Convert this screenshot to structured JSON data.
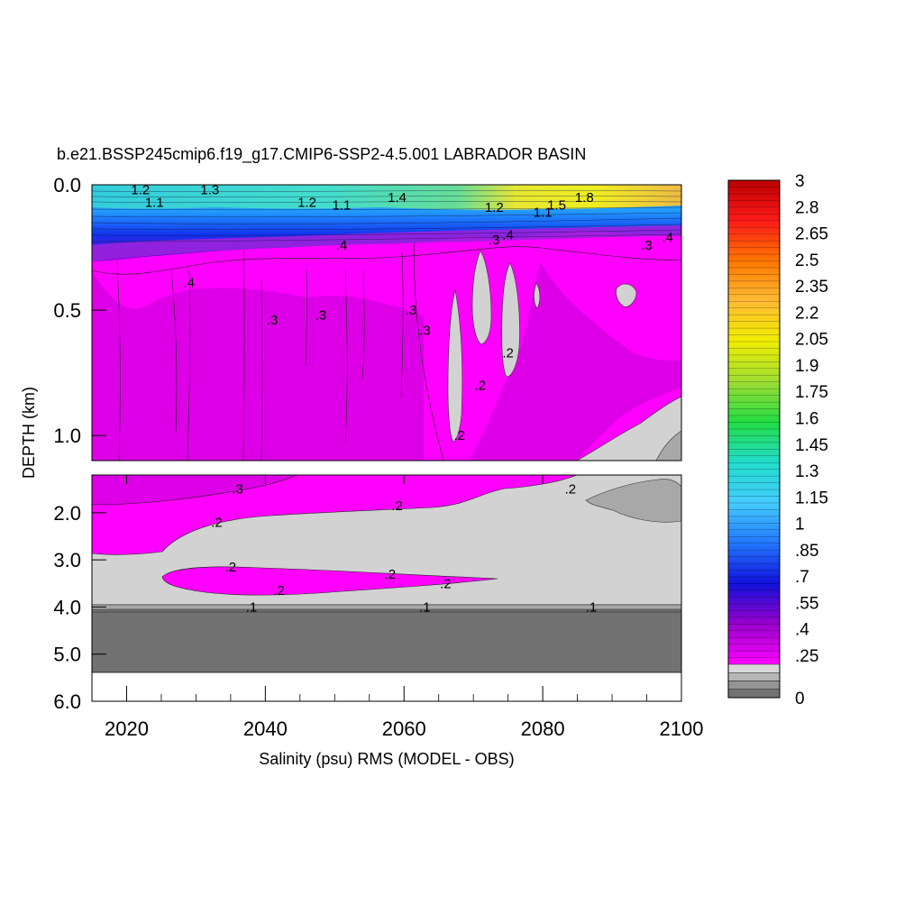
{
  "chart_data": {
    "type": "heatmap",
    "title": "b.e21.BSSP245cmip6.f19_g17.CMIP6-SSP2-4.5.001 LABRADOR BASIN",
    "xlabel": "Salinity (psu) RMS (MODEL - OBS)",
    "ylabel": "DEPTH (km)",
    "xlim": [
      2015,
      2100
    ],
    "x_ticks": [
      "2020",
      "2040",
      "2060",
      "2080",
      "2100"
    ],
    "upper_panel": {
      "ylim": [
        0.0,
        1.1
      ],
      "y_ticks": [
        "0.0",
        "0.5",
        "1.0"
      ],
      "contour_labels": [
        {
          "text": "1.2",
          "x": 2022,
          "y": 0.02
        },
        {
          "text": "1.1",
          "x": 2024,
          "y": 0.07
        },
        {
          "text": "1.3",
          "x": 2032,
          "y": 0.02
        },
        {
          "text": "1.2",
          "x": 2046,
          "y": 0.07
        },
        {
          "text": "1.1",
          "x": 2051,
          "y": 0.08
        },
        {
          "text": "1.4",
          "x": 2059,
          "y": 0.05
        },
        {
          "text": "1.2",
          "x": 2073,
          "y": 0.09
        },
        {
          "text": "1.1",
          "x": 2080,
          "y": 0.11
        },
        {
          "text": "1.5",
          "x": 2082,
          "y": 0.08
        },
        {
          "text": "1.8",
          "x": 2086,
          "y": 0.05
        },
        {
          "text": ".4",
          "x": 2051,
          "y": 0.24
        },
        {
          "text": ".4",
          "x": 2029,
          "y": 0.39
        },
        {
          "text": ".3",
          "x": 2073,
          "y": 0.22
        },
        {
          "text": ".4",
          "x": 2075,
          "y": 0.2
        },
        {
          "text": ".3",
          "x": 2095,
          "y": 0.24
        },
        {
          "text": ".4",
          "x": 2098,
          "y": 0.21
        },
        {
          "text": ".3",
          "x": 2041,
          "y": 0.54
        },
        {
          "text": ".3",
          "x": 2048,
          "y": 0.52
        },
        {
          "text": ".3",
          "x": 2061,
          "y": 0.5
        },
        {
          "text": ".3",
          "x": 2063,
          "y": 0.58
        },
        {
          "text": ".2",
          "x": 2075,
          "y": 0.67
        },
        {
          "text": ".2",
          "x": 2071,
          "y": 0.8
        },
        {
          "text": ".2",
          "x": 2068,
          "y": 1.0
        }
      ]
    },
    "lower_panel": {
      "ylim": [
        1.2,
        6.0
      ],
      "y_ticks": [
        "2.0",
        "3.0",
        "4.0",
        "5.0",
        "6.0"
      ],
      "contour_labels": [
        {
          "text": ".3",
          "x": 2036,
          "y": 1.5
        },
        {
          "text": ".2",
          "x": 2084,
          "y": 1.5
        },
        {
          "text": ".2",
          "x": 2033,
          "y": 2.2
        },
        {
          "text": ".2",
          "x": 2059,
          "y": 1.85
        },
        {
          "text": ".2",
          "x": 2035,
          "y": 3.15
        },
        {
          "text": ".2",
          "x": 2058,
          "y": 3.3
        },
        {
          "text": ".2",
          "x": 2066,
          "y": 3.5
        },
        {
          "text": ".2",
          "x": 2042,
          "y": 3.65
        },
        {
          "text": ".1",
          "x": 2038,
          "y": 4.0
        },
        {
          "text": ".1",
          "x": 2063,
          "y": 4.0
        },
        {
          "text": ".1",
          "x": 2087,
          "y": 4.0
        }
      ],
      "no_data_below_km": 5.3
    },
    "colorbar": {
      "labels": [
        "3",
        "2.8",
        "2.65",
        "2.5",
        "2.35",
        "2.2",
        "2.05",
        "1.9",
        "1.75",
        "1.6",
        "1.45",
        "1.3",
        "1.15",
        "1",
        ".85",
        ".7",
        ".55",
        ".4",
        ".25",
        "0"
      ],
      "stops": [
        "#bb0000",
        "#ff1a1a",
        "#ff7700",
        "#ffbb33",
        "#f0ee00",
        "#9ddd33",
        "#22dd44",
        "#22ddcc",
        "#44ccff",
        "#2277ff",
        "#1111dd",
        "#9900cc",
        "#ff00ff"
      ],
      "gray_stops": [
        "#d8d8d8",
        "#b6b6b6",
        "#949494",
        "#727272"
      ]
    },
    "colors": {
      "magenta": "#ff00ff",
      "dark_magenta": "#dd00e6",
      "light_gray": "#d2d2d2",
      "mid_gray": "#a8a8a8",
      "dark_gray": "#727272"
    }
  }
}
